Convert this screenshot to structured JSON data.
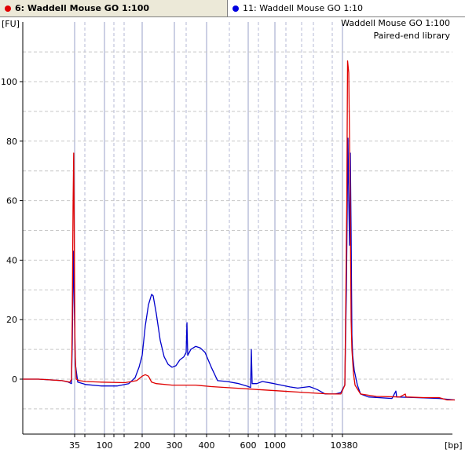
{
  "tabs": [
    {
      "label": "6: Waddell Mouse GO 1:100",
      "color": "#e00000"
    },
    {
      "label": "11: Waddell Mouse GO 1:10",
      "color": "#0000e0"
    }
  ],
  "annotation": {
    "line1": "Waddell Mouse GO 1:100",
    "line2": "Paired-end library"
  },
  "colors": {
    "sample_red": "#e00000",
    "sample_blue": "#0000cc",
    "grid": "#9aa0c8"
  },
  "chart_data": {
    "type": "line",
    "ylabel": "[FU]",
    "xlabel": "[bp]",
    "ylim": [
      -18,
      115
    ],
    "y_ticks": [
      0,
      20,
      40,
      60,
      80,
      100
    ],
    "x_tick_labels": [
      "35",
      "100",
      "200",
      "300",
      "400",
      "600",
      "1000",
      "10380"
    ],
    "grid": true,
    "series": [
      {
        "name": "11: Waddell Mouse GO 1:10",
        "color": "#0000cc",
        "points": [
          [
            0,
            0
          ],
          [
            20,
            0
          ],
          [
            50,
            -0.5
          ],
          [
            58,
            -1
          ],
          [
            62,
            -1.5
          ],
          [
            63,
            12
          ],
          [
            64.5,
            43
          ],
          [
            65.5,
            26
          ],
          [
            67,
            5
          ],
          [
            70,
            -1
          ],
          [
            80,
            -1.8
          ],
          [
            100,
            -2.3
          ],
          [
            120,
            -2.3
          ],
          [
            135,
            -1.5
          ],
          [
            143,
            0.5
          ],
          [
            148,
            4
          ],
          [
            152,
            8
          ],
          [
            156,
            18
          ],
          [
            160,
            25
          ],
          [
            164,
            28.5
          ],
          [
            166,
            28
          ],
          [
            170,
            22
          ],
          [
            175,
            13
          ],
          [
            180,
            7.5
          ],
          [
            185,
            5
          ],
          [
            190,
            4
          ],
          [
            195,
            4.5
          ],
          [
            200,
            6.5
          ],
          [
            205,
            7.5
          ],
          [
            208,
            9
          ],
          [
            209,
            19
          ],
          [
            210,
            8
          ],
          [
            214,
            10
          ],
          [
            220,
            11
          ],
          [
            226,
            10.5
          ],
          [
            232,
            9
          ],
          [
            240,
            4
          ],
          [
            248,
            -0.5
          ],
          [
            260,
            -0.8
          ],
          [
            275,
            -1.5
          ],
          [
            285,
            -2.3
          ],
          [
            290,
            -2.8
          ],
          [
            291,
            10
          ],
          [
            292,
            -1.5
          ],
          [
            298,
            -1.5
          ],
          [
            305,
            -0.8
          ],
          [
            320,
            -1.5
          ],
          [
            340,
            -2.6
          ],
          [
            350,
            -3
          ],
          [
            365,
            -2.5
          ],
          [
            375,
            -3.5
          ],
          [
            385,
            -5
          ],
          [
            398,
            -5
          ],
          [
            405,
            -4.5
          ],
          [
            410,
            -2
          ],
          [
            412,
            30
          ],
          [
            414,
            81
          ],
          [
            415,
            60
          ],
          [
            416,
            45
          ],
          [
            417,
            76
          ],
          [
            418,
            50
          ],
          [
            419,
            15
          ],
          [
            420,
            8
          ],
          [
            422,
            3
          ],
          [
            426,
            -2
          ],
          [
            430,
            -5
          ],
          [
            440,
            -6
          ],
          [
            470,
            -6.5
          ],
          [
            475,
            -4
          ],
          [
            476,
            -6
          ],
          [
            500,
            -6.2
          ],
          [
            530,
            -6.5
          ],
          [
            550,
            -7
          ]
        ]
      },
      {
        "name": "6: Waddell Mouse GO 1:100",
        "color": "#e00000",
        "points": [
          [
            0,
            0
          ],
          [
            20,
            0
          ],
          [
            50,
            -0.5
          ],
          [
            60,
            -1
          ],
          [
            62,
            0
          ],
          [
            63,
            20
          ],
          [
            64,
            58
          ],
          [
            64.8,
            76
          ],
          [
            65.5,
            50
          ],
          [
            66.5,
            10
          ],
          [
            68,
            0
          ],
          [
            72,
            -0.5
          ],
          [
            80,
            -0.8
          ],
          [
            100,
            -1
          ],
          [
            130,
            -1.2
          ],
          [
            145,
            -0.5
          ],
          [
            152,
            1
          ],
          [
            156,
            1.5
          ],
          [
            160,
            1
          ],
          [
            164,
            -1
          ],
          [
            170,
            -1.5
          ],
          [
            190,
            -2
          ],
          [
            220,
            -2
          ],
          [
            240,
            -2.5
          ],
          [
            270,
            -3
          ],
          [
            300,
            -3.5
          ],
          [
            330,
            -4
          ],
          [
            360,
            -4.5
          ],
          [
            390,
            -5
          ],
          [
            405,
            -5
          ],
          [
            410,
            -2
          ],
          [
            411,
            20
          ],
          [
            412.5,
            60
          ],
          [
            413.5,
            107
          ],
          [
            415,
            103
          ],
          [
            416,
            80
          ],
          [
            417,
            55
          ],
          [
            418,
            20
          ],
          [
            419,
            10
          ],
          [
            421,
            2
          ],
          [
            423,
            -2
          ],
          [
            430,
            -5
          ],
          [
            450,
            -5.8
          ],
          [
            480,
            -6
          ],
          [
            487,
            -5
          ],
          [
            488,
            -6
          ],
          [
            510,
            -6.2
          ],
          [
            530,
            -6.2
          ],
          [
            540,
            -7
          ],
          [
            550,
            -7
          ]
        ]
      }
    ]
  }
}
